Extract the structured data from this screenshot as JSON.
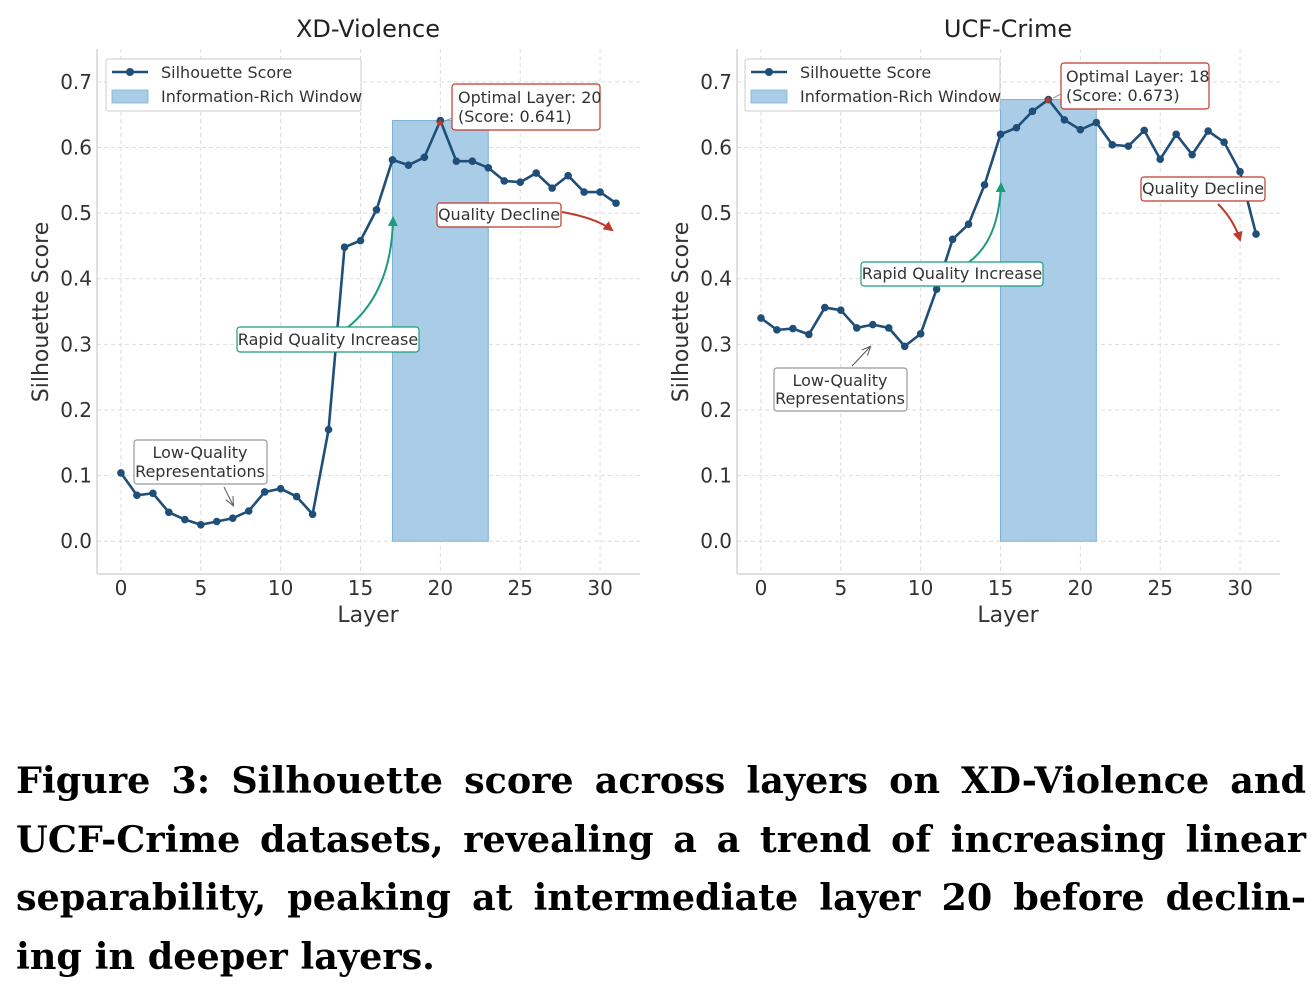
{
  "caption": "Figure 3: Silhouette score across layers on XD-Violence and UCF-Crime datasets, revealing a a trend of increasing linear separability, peaking at intermediate layer 20 before declin- ing in deeper layers.",
  "colors": {
    "line": "#1f4e79",
    "window_fill": "#a9cde6",
    "window_stroke": "#7fb2d6",
    "red": "#c0392b",
    "green": "#1a9c7c",
    "gray_box": "#999999"
  },
  "chart_data": [
    {
      "type": "line",
      "title": "XD-Violence",
      "xlabel": "Layer",
      "ylabel": "Silhouette Score",
      "xlim": [
        -1.5,
        32.5
      ],
      "ylim": [
        -0.05,
        0.75
      ],
      "xticks": [
        0,
        5,
        10,
        15,
        20,
        25,
        30
      ],
      "yticks": [
        0.0,
        0.1,
        0.2,
        0.3,
        0.4,
        0.5,
        0.6,
        0.7
      ],
      "ytick_labels": [
        "0.0",
        "0.1",
        "0.2",
        "0.3",
        "0.4",
        "0.5",
        "0.6",
        "0.7"
      ],
      "grid": true,
      "legend_position": "top-left",
      "series": [
        {
          "name": "Silhouette Score",
          "x": [
            0,
            1,
            2,
            3,
            4,
            5,
            6,
            7,
            8,
            9,
            10,
            11,
            12,
            13,
            14,
            15,
            16,
            17,
            18,
            19,
            20,
            21,
            22,
            23,
            24,
            25,
            26,
            27,
            28,
            29,
            30,
            31
          ],
          "values": [
            0.104,
            0.07,
            0.073,
            0.044,
            0.033,
            0.025,
            0.03,
            0.035,
            0.046,
            0.075,
            0.08,
            0.068,
            0.041,
            0.17,
            0.448,
            0.458,
            0.505,
            0.581,
            0.573,
            0.585,
            0.641,
            0.579,
            0.579,
            0.569,
            0.549,
            0.547,
            0.561,
            0.538,
            0.557,
            0.532,
            0.532,
            0.515
          ]
        }
      ],
      "window": {
        "name": "Information-Rich Window",
        "x_range": [
          17,
          23
        ]
      },
      "annotations": {
        "optimal": {
          "lines": [
            "Optimal Layer: 20",
            "(Score: 0.641)"
          ],
          "x": 20,
          "y": 0.641
        },
        "decline": {
          "text": "Quality Decline"
        },
        "increase": {
          "text": "Rapid Quality Increase"
        },
        "low": {
          "lines": [
            "Low-Quality",
            "Representations"
          ]
        }
      }
    },
    {
      "type": "line",
      "title": "UCF-Crime",
      "xlabel": "Layer",
      "ylabel": "Silhouette Score",
      "xlim": [
        -1.5,
        32.5
      ],
      "ylim": [
        -0.05,
        0.75
      ],
      "xticks": [
        0,
        5,
        10,
        15,
        20,
        25,
        30
      ],
      "yticks": [
        0.0,
        0.1,
        0.2,
        0.3,
        0.4,
        0.5,
        0.6,
        0.7
      ],
      "ytick_labels": [
        "0.0",
        "0.1",
        "0.2",
        "0.3",
        "0.4",
        "0.5",
        "0.6",
        "0.7"
      ],
      "grid": true,
      "legend_position": "top-left",
      "series": [
        {
          "name": "Silhouette Score",
          "x": [
            0,
            1,
            2,
            3,
            4,
            5,
            6,
            7,
            8,
            9,
            10,
            11,
            12,
            13,
            14,
            15,
            16,
            17,
            18,
            19,
            20,
            21,
            22,
            23,
            24,
            25,
            26,
            27,
            28,
            29,
            30,
            31
          ],
          "values": [
            0.34,
            0.322,
            0.324,
            0.315,
            0.356,
            0.352,
            0.325,
            0.33,
            0.325,
            0.297,
            0.316,
            0.384,
            0.46,
            0.483,
            0.543,
            0.62,
            0.63,
            0.655,
            0.673,
            0.642,
            0.627,
            0.638,
            0.604,
            0.602,
            0.626,
            0.582,
            0.62,
            0.589,
            0.625,
            0.608,
            0.563,
            0.468
          ]
        }
      ],
      "window": {
        "name": "Information-Rich Window",
        "x_range": [
          15,
          21
        ]
      },
      "annotations": {
        "optimal": {
          "lines": [
            "Optimal Layer: 18",
            "(Score: 0.673)"
          ],
          "x": 18,
          "y": 0.673
        },
        "decline": {
          "text": "Quality Decline"
        },
        "increase": {
          "text": "Rapid Quality Increase"
        },
        "low": {
          "lines": [
            "Low-Quality",
            "Representations"
          ]
        }
      }
    }
  ]
}
